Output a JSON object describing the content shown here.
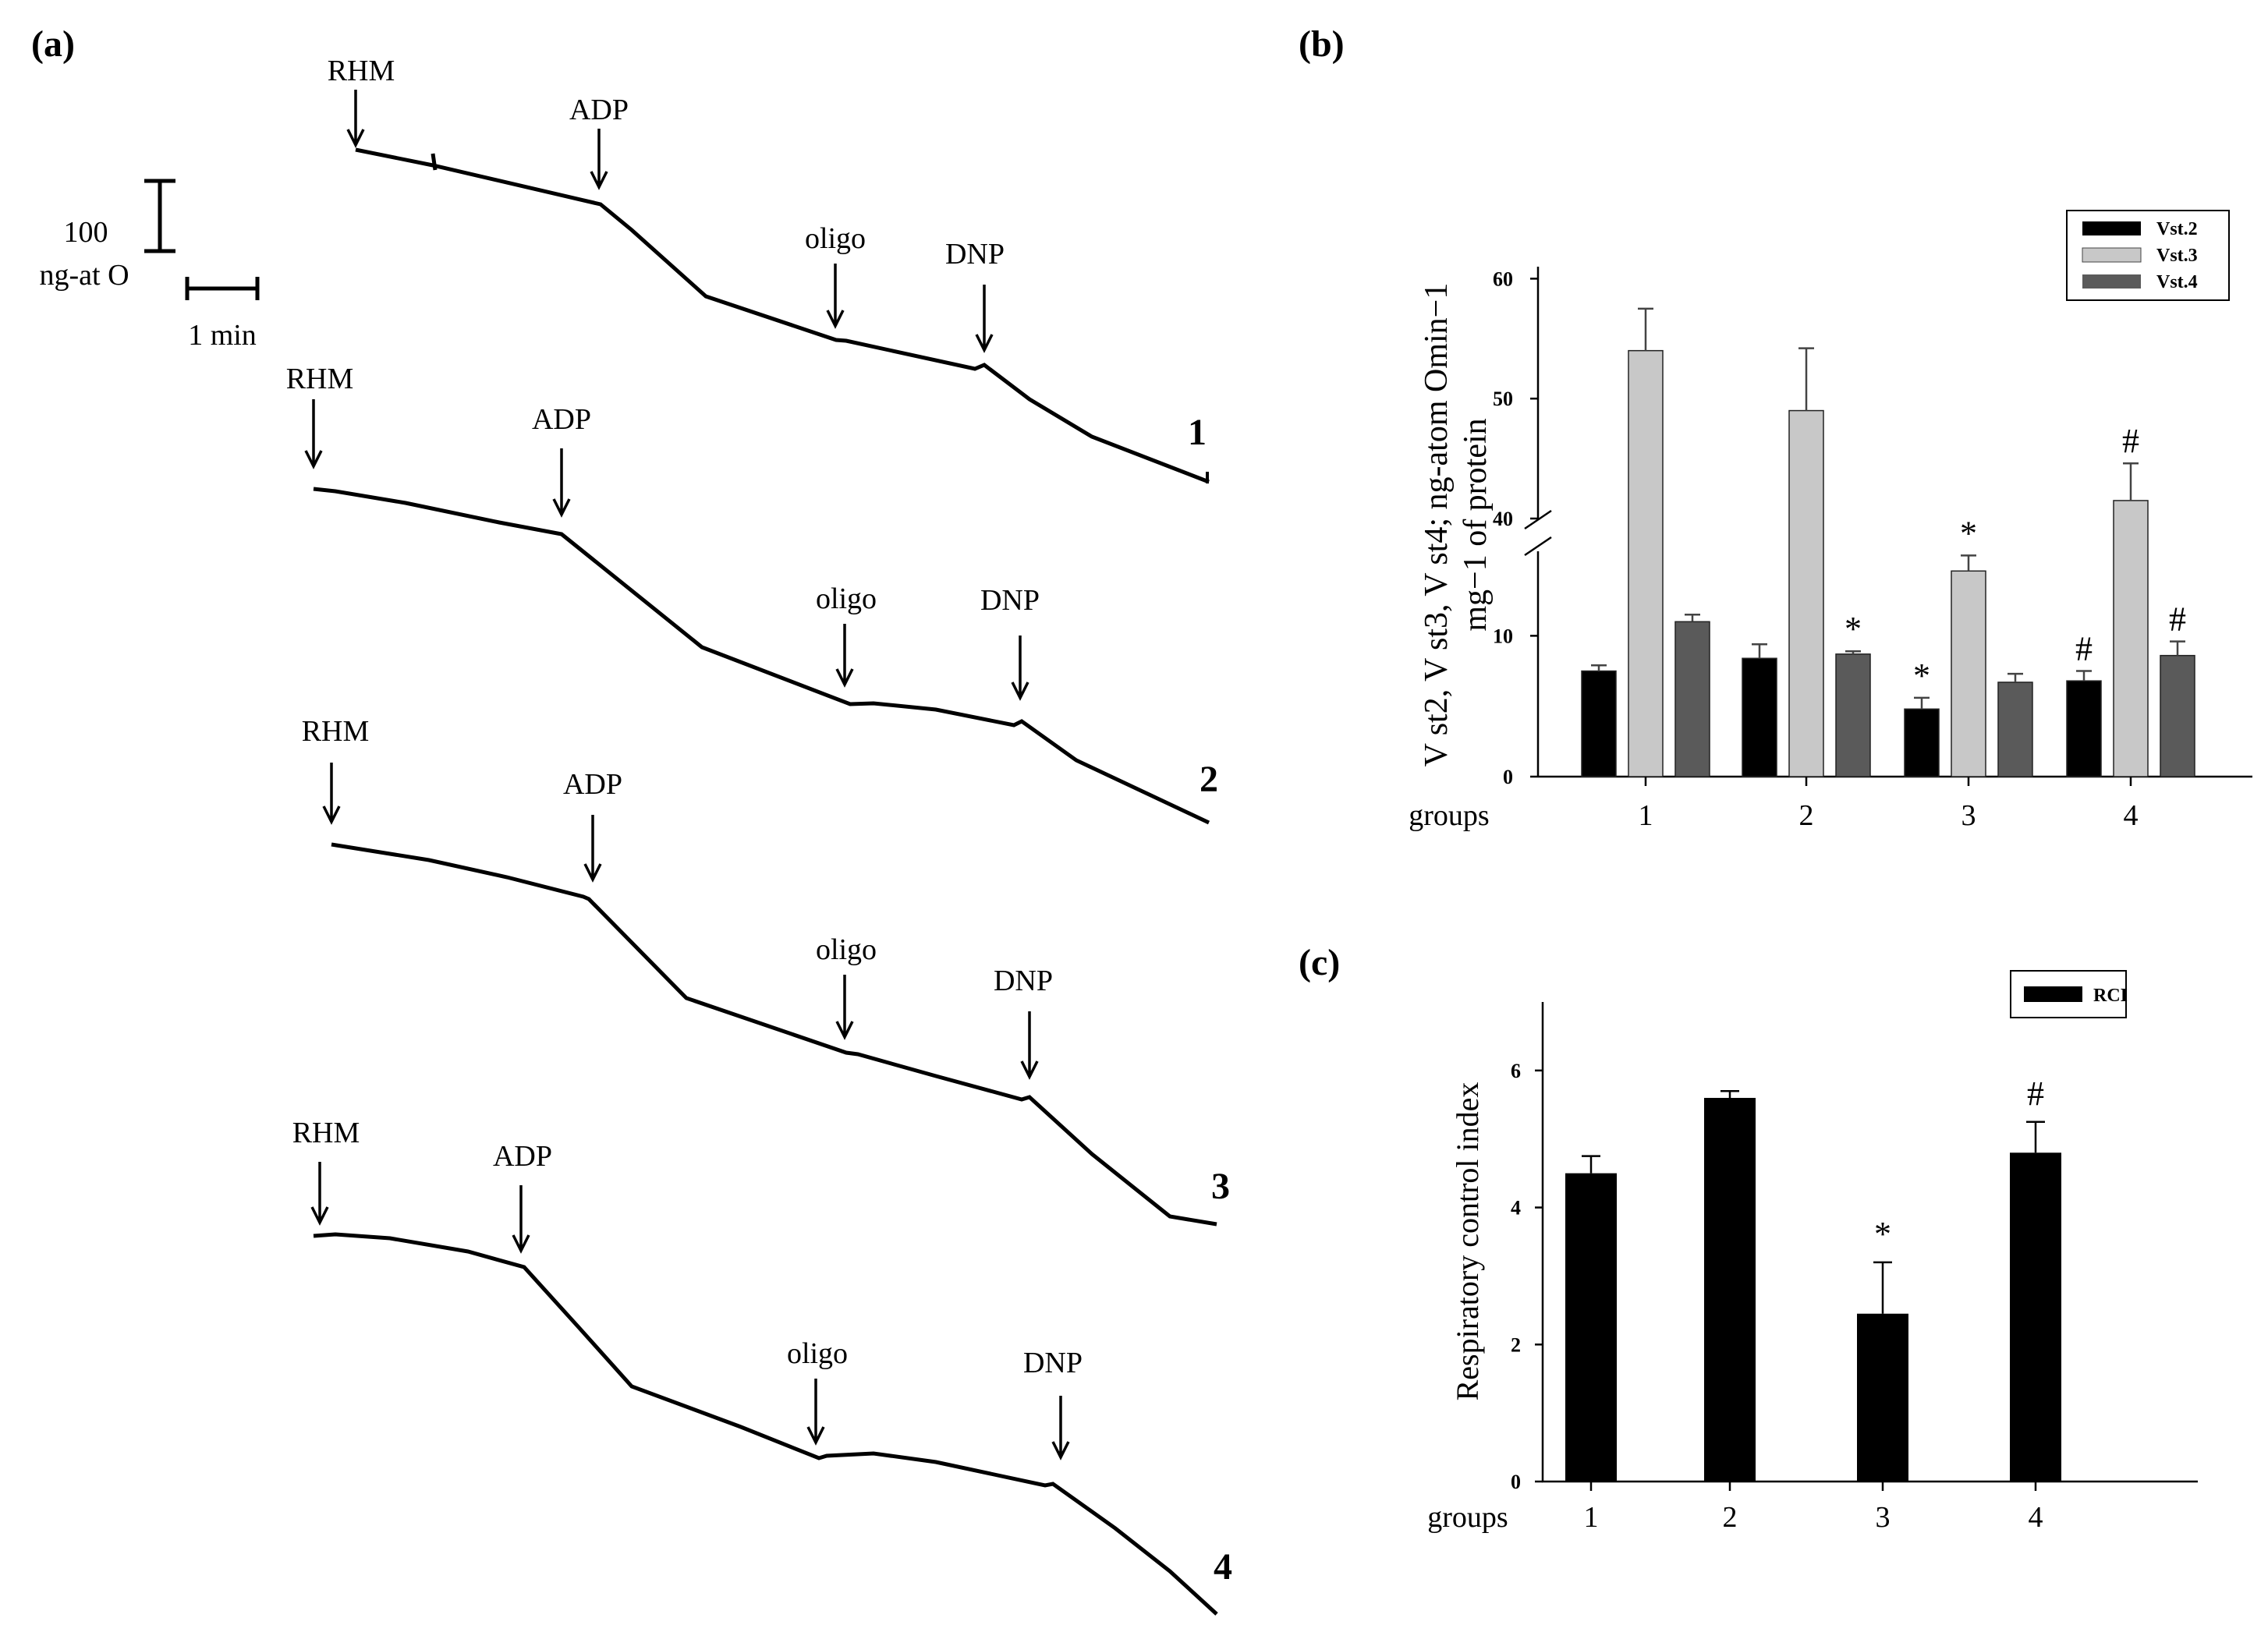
{
  "panel_a": {
    "label": "(a)",
    "scale_value": "100",
    "scale_unit": "ng-at O",
    "time_scale": "1 min",
    "traces": [
      {
        "id": "1",
        "markers": [
          "RHM",
          "ADP",
          "oligo",
          "DNP"
        ]
      },
      {
        "id": "2",
        "markers": [
          "RHM",
          "ADP",
          "oligo",
          "DNP"
        ]
      },
      {
        "id": "3",
        "markers": [
          "RHM",
          "ADP",
          "oligo",
          "DNP"
        ]
      },
      {
        "id": "4",
        "markers": [
          "RHM",
          "ADP",
          "oligo",
          "DNP"
        ]
      }
    ]
  },
  "panel_b": {
    "label": "(b)"
  },
  "panel_c": {
    "label": "(c)"
  },
  "chart_data": [
    {
      "id": "b",
      "type": "bar",
      "title": "",
      "xlabel": "groups",
      "ylabel_line1": "V st2, V st3, V st4; ng-atom Omin−1",
      "ylabel_line2": "mg−1 of protein",
      "categories": [
        "1",
        "2",
        "3",
        "4"
      ],
      "broken_axis": {
        "lower_range": [
          0,
          16
        ],
        "upper_range": [
          40,
          61
        ],
        "lower_ticks": [
          0,
          10
        ],
        "upper_ticks": [
          40,
          50,
          60
        ]
      },
      "legend": [
        "Vst.2",
        "Vst.3",
        "Vst.4"
      ],
      "legend_position": "top-right",
      "series": [
        {
          "name": "Vst.2",
          "color": "#000000",
          "values": [
            7.5,
            8.4,
            4.8,
            6.8
          ],
          "errors": [
            0.4,
            1.0,
            0.8,
            0.7
          ],
          "annotations": [
            "",
            "",
            "*",
            "#"
          ]
        },
        {
          "name": "Vst.3",
          "color": "#c8c8c8",
          "values": [
            54,
            49,
            14.6,
            41.5
          ],
          "errors": [
            3.5,
            5.2,
            1.1,
            3.1
          ],
          "annotations": [
            "",
            "",
            "*",
            "#"
          ]
        },
        {
          "name": "Vst.4",
          "color": "#5a5a5a",
          "values": [
            11.0,
            8.7,
            6.7,
            8.6
          ],
          "errors": [
            0.5,
            0.2,
            0.6,
            1.0
          ],
          "annotations": [
            "",
            "*",
            "",
            "#"
          ]
        }
      ]
    },
    {
      "id": "c",
      "type": "bar",
      "title": "",
      "xlabel": "groups",
      "ylabel": "Respiratory control index",
      "categories": [
        "1",
        "2",
        "3",
        "4"
      ],
      "ylim": [
        0,
        7
      ],
      "yticks": [
        0,
        2,
        4,
        6
      ],
      "legend": [
        "RCI"
      ],
      "legend_position": "top-right",
      "series": [
        {
          "name": "RCI",
          "color": "#000000",
          "values": [
            4.5,
            5.6,
            2.45,
            4.8
          ],
          "errors": [
            0.25,
            0.1,
            0.75,
            0.45
          ],
          "annotations": [
            "",
            "",
            "*",
            "#"
          ]
        }
      ]
    }
  ]
}
